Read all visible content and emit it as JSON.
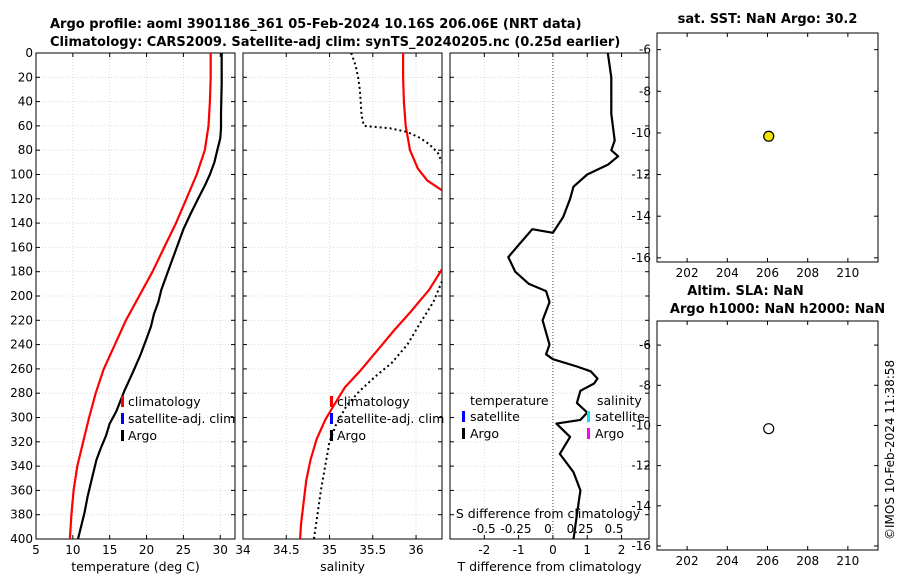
{
  "title": {
    "line1": "Argo profile: aoml 3901186_361 05-Feb-2024 10.16S 206.06E (NRT data)",
    "line2": "Climatology: CARS2009. Satellite-adj clim: synTS_20240205.nc (0.25d earlier)"
  },
  "colors": {
    "climatology": "#ff0000",
    "satellite_adj": "#0000ff",
    "argo": "#000000",
    "sat_cyan": "#00e5ff",
    "sat_magenta": "#ff00ff",
    "sst_marker": "#f2e600"
  },
  "chart_data": [
    {
      "id": "temperature",
      "type": "line",
      "xlabel": "temperature (deg C)",
      "ylabel": "",
      "xlim": [
        5,
        32
      ],
      "ylim": [
        400,
        0
      ],
      "xticks": [
        5,
        10,
        15,
        20,
        25,
        30
      ],
      "yticks": [
        0,
        20,
        40,
        60,
        80,
        100,
        120,
        140,
        160,
        180,
        200,
        220,
        240,
        260,
        280,
        300,
        320,
        340,
        360,
        380,
        400
      ],
      "grid": true,
      "legend": {
        "position": "bottom-right",
        "entries": [
          "climatology",
          "satellite-adj. clim",
          "Argo"
        ]
      },
      "series": [
        {
          "name": "climatology",
          "color": "red",
          "width": 2.2,
          "x": [
            28.7,
            28.7,
            28.6,
            28.4,
            27.9,
            26.8,
            25.4,
            24.0,
            22.4,
            20.8,
            19.0,
            17.2,
            15.7,
            14.2,
            13.1,
            12.2,
            11.4,
            10.6,
            10.1,
            9.8,
            9.6
          ],
          "y": [
            0,
            20,
            40,
            60,
            80,
            100,
            120,
            140,
            160,
            180,
            200,
            220,
            240,
            260,
            280,
            300,
            320,
            340,
            360,
            380,
            400
          ]
        },
        {
          "name": "Argo",
          "color": "black",
          "width": 2.2,
          "x": [
            30.2,
            30.2,
            30.1,
            30.1,
            30.0,
            29.6,
            29.2,
            28.6,
            28.0,
            27.0,
            26.0,
            25.0,
            24.1,
            23.2,
            22.6,
            22.0,
            21.6,
            21.0,
            20.6,
            20.0,
            19.2,
            18.2,
            17.0,
            15.9,
            15.0,
            14.5,
            13.8,
            13.2,
            12.6,
            12.0,
            11.6,
            11.1,
            10.7
          ],
          "y": [
            0,
            25,
            50,
            62,
            70,
            80,
            90,
            100,
            108,
            120,
            132,
            145,
            160,
            175,
            185,
            195,
            205,
            215,
            225,
            235,
            248,
            262,
            278,
            295,
            305,
            315,
            325,
            335,
            350,
            365,
            378,
            390,
            400
          ]
        }
      ]
    },
    {
      "id": "salinity",
      "type": "line",
      "xlabel": "salinity",
      "xlim": [
        34,
        36.3
      ],
      "ylim": [
        400,
        0
      ],
      "xticks": [
        34,
        34.5,
        35,
        35.5,
        36
      ],
      "grid": true,
      "legend": {
        "position": "bottom-left",
        "entries": [
          "climatology",
          "satellite-adj. clim",
          "Argo"
        ]
      },
      "series": [
        {
          "name": "climatology",
          "color": "red",
          "width": 2.2,
          "segments": [
            {
              "x": [
                35.85,
                35.85,
                35.86,
                35.88,
                35.93,
                36.02,
                36.13,
                36.3
              ],
              "y": [
                0,
                20,
                40,
                60,
                80,
                95,
                105,
                113
              ]
            },
            {
              "x": [
                36.3,
                36.15,
                35.95,
                35.75,
                35.55,
                35.35,
                35.18,
                35.05,
                34.95,
                34.85,
                34.78,
                34.73,
                34.7,
                34.67,
                34.66
              ],
              "y": [
                178,
                195,
                212,
                228,
                245,
                262,
                275,
                290,
                302,
                318,
                335,
                352,
                370,
                388,
                400
              ]
            }
          ]
        },
        {
          "name": "Argo",
          "color": "black",
          "width": 2,
          "dash": "2,3",
          "segments": [
            {
              "x": [
                35.25,
                35.3,
                35.33,
                35.35,
                35.36,
                35.37,
                35.38,
                35.4,
                35.7,
                35.9,
                36.05,
                36.15,
                36.25,
                36.3
              ],
              "y": [
                0,
                10,
                20,
                30,
                40,
                50,
                55,
                60,
                62,
                65,
                70,
                75,
                82,
                90
              ]
            },
            {
              "x": [
                36.3,
                36.2,
                36.05,
                35.9,
                35.72,
                35.55,
                35.35,
                35.2,
                35.08,
                35.0,
                34.95,
                34.9,
                34.87,
                34.84,
                34.82
              ],
              "y": [
                188,
                205,
                222,
                240,
                255,
                265,
                278,
                290,
                305,
                320,
                340,
                360,
                375,
                390,
                400
              ]
            }
          ]
        }
      ]
    },
    {
      "id": "difference",
      "type": "line",
      "xlabel": "T difference from climatology",
      "top_axis_label": "S difference from climatology",
      "xlim": [
        -3,
        2.8
      ],
      "ylim": [
        400,
        0
      ],
      "xticks": [
        -2,
        -1,
        0,
        1,
        2
      ],
      "top_ticks": [
        "-0.5",
        "-0.25",
        "0",
        "0.25",
        "0.5"
      ],
      "grid": true,
      "legend": {
        "position": "bottom",
        "temperature_header": "temperature",
        "salinity_header": "salinity",
        "temperature_entries": [
          "satellite",
          "Argo"
        ],
        "salinity_entries": [
          "satellite",
          "Argo"
        ]
      },
      "series": [
        {
          "name": "T difference Argo",
          "color": "black",
          "width": 2.2,
          "x": [
            1.6,
            1.7,
            1.7,
            1.8,
            1.7,
            1.9,
            1.6,
            1.0,
            0.6,
            0.5,
            0.3,
            0.0,
            -0.6,
            -1.0,
            -1.3,
            -1.1,
            -0.7,
            -0.2,
            -0.1,
            -0.3,
            -0.1,
            -0.2,
            0.0,
            0.7,
            1.1,
            1.3,
            1.2,
            0.8,
            0.7,
            1.0,
            0.8,
            0.1,
            0.5,
            0.2,
            0.6,
            0.8,
            0.7,
            0.6
          ],
          "y": [
            0,
            20,
            50,
            72,
            80,
            85,
            92,
            100,
            110,
            120,
            135,
            148,
            145,
            158,
            168,
            180,
            190,
            196,
            205,
            220,
            240,
            248,
            252,
            258,
            262,
            268,
            272,
            278,
            288,
            296,
            302,
            305,
            316,
            330,
            345,
            360,
            380,
            400
          ]
        }
      ]
    },
    {
      "id": "sst_map",
      "type": "scatter",
      "title": "sat. SST: NaN Argo: 30.2",
      "xlim": [
        200.5,
        211.5
      ],
      "ylim": [
        -16.2,
        -5.2
      ],
      "xticks": [
        202,
        204,
        206,
        208,
        210
      ],
      "yticks": [
        -6,
        -8,
        -10,
        -12,
        -14,
        -16
      ],
      "grid": false,
      "points": [
        {
          "x": 206.06,
          "y": -10.16,
          "fill": "yellow"
        }
      ]
    },
    {
      "id": "sla_map",
      "type": "scatter",
      "title_line1": "Altim. SLA: NaN",
      "title_line2": "Argo h1000: NaN h2000: NaN",
      "xlim": [
        200.5,
        211.5
      ],
      "ylim": [
        -16.2,
        -4.8
      ],
      "xticks": [
        202,
        204,
        206,
        208,
        210
      ],
      "yticks": [
        -6,
        -8,
        -10,
        -12,
        -14,
        -16
      ],
      "grid": false,
      "points": [
        {
          "x": 206.06,
          "y": -10.16,
          "fill": "white"
        }
      ]
    }
  ],
  "stamp": "©IMOS 10-Feb-2024 11:38:58"
}
